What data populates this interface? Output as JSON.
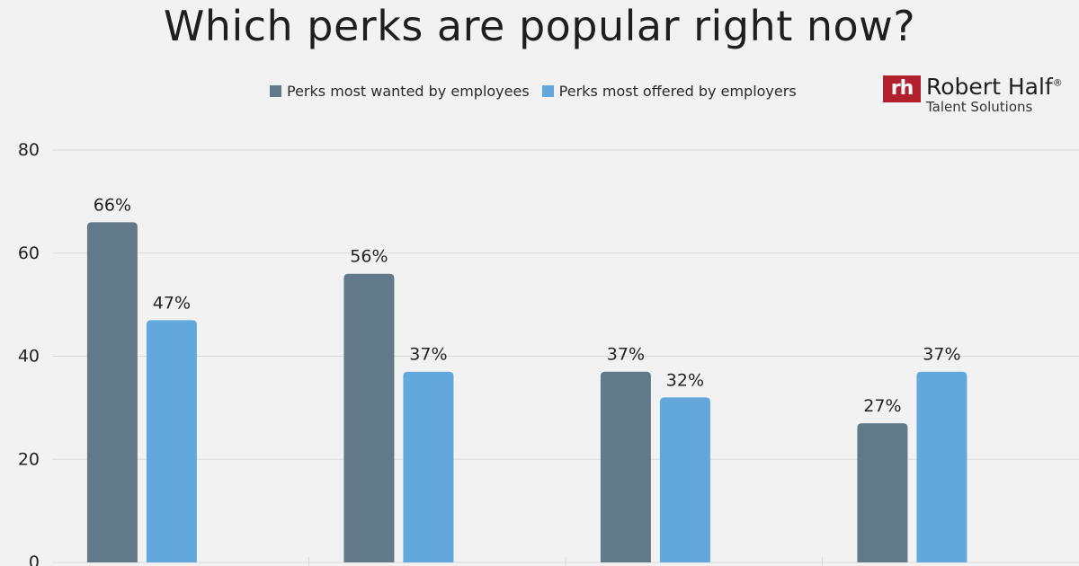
{
  "header": {
    "title": "Which perks are popular right now?"
  },
  "logo": {
    "mark": "rh",
    "name": "Robert Half",
    "registered": "®",
    "subtitle": "Talent Solutions"
  },
  "colors": {
    "series_wanted": "#62798a",
    "series_offered": "#62a8dc",
    "gridline": "#d9d9d9",
    "brand_red": "#b21f2d"
  },
  "chart_data": {
    "type": "bar",
    "title": "Which perks are popular right now?",
    "categories": [
      "",
      "",
      "",
      ""
    ],
    "series": [
      {
        "name": "Perks most wanted by employees",
        "values": [
          66,
          56,
          37,
          27
        ],
        "labels": [
          "66%",
          "56%",
          "37%",
          "27%"
        ]
      },
      {
        "name": "Perks most offered by employers",
        "values": [
          47,
          37,
          32,
          37
        ],
        "labels": [
          "47%",
          "37%",
          "32%",
          "37%"
        ]
      }
    ],
    "ylim": [
      0,
      80
    ],
    "yticks": [
      "0",
      "20",
      "40",
      "60",
      "80"
    ],
    "grid": true,
    "legend_position": "top"
  }
}
